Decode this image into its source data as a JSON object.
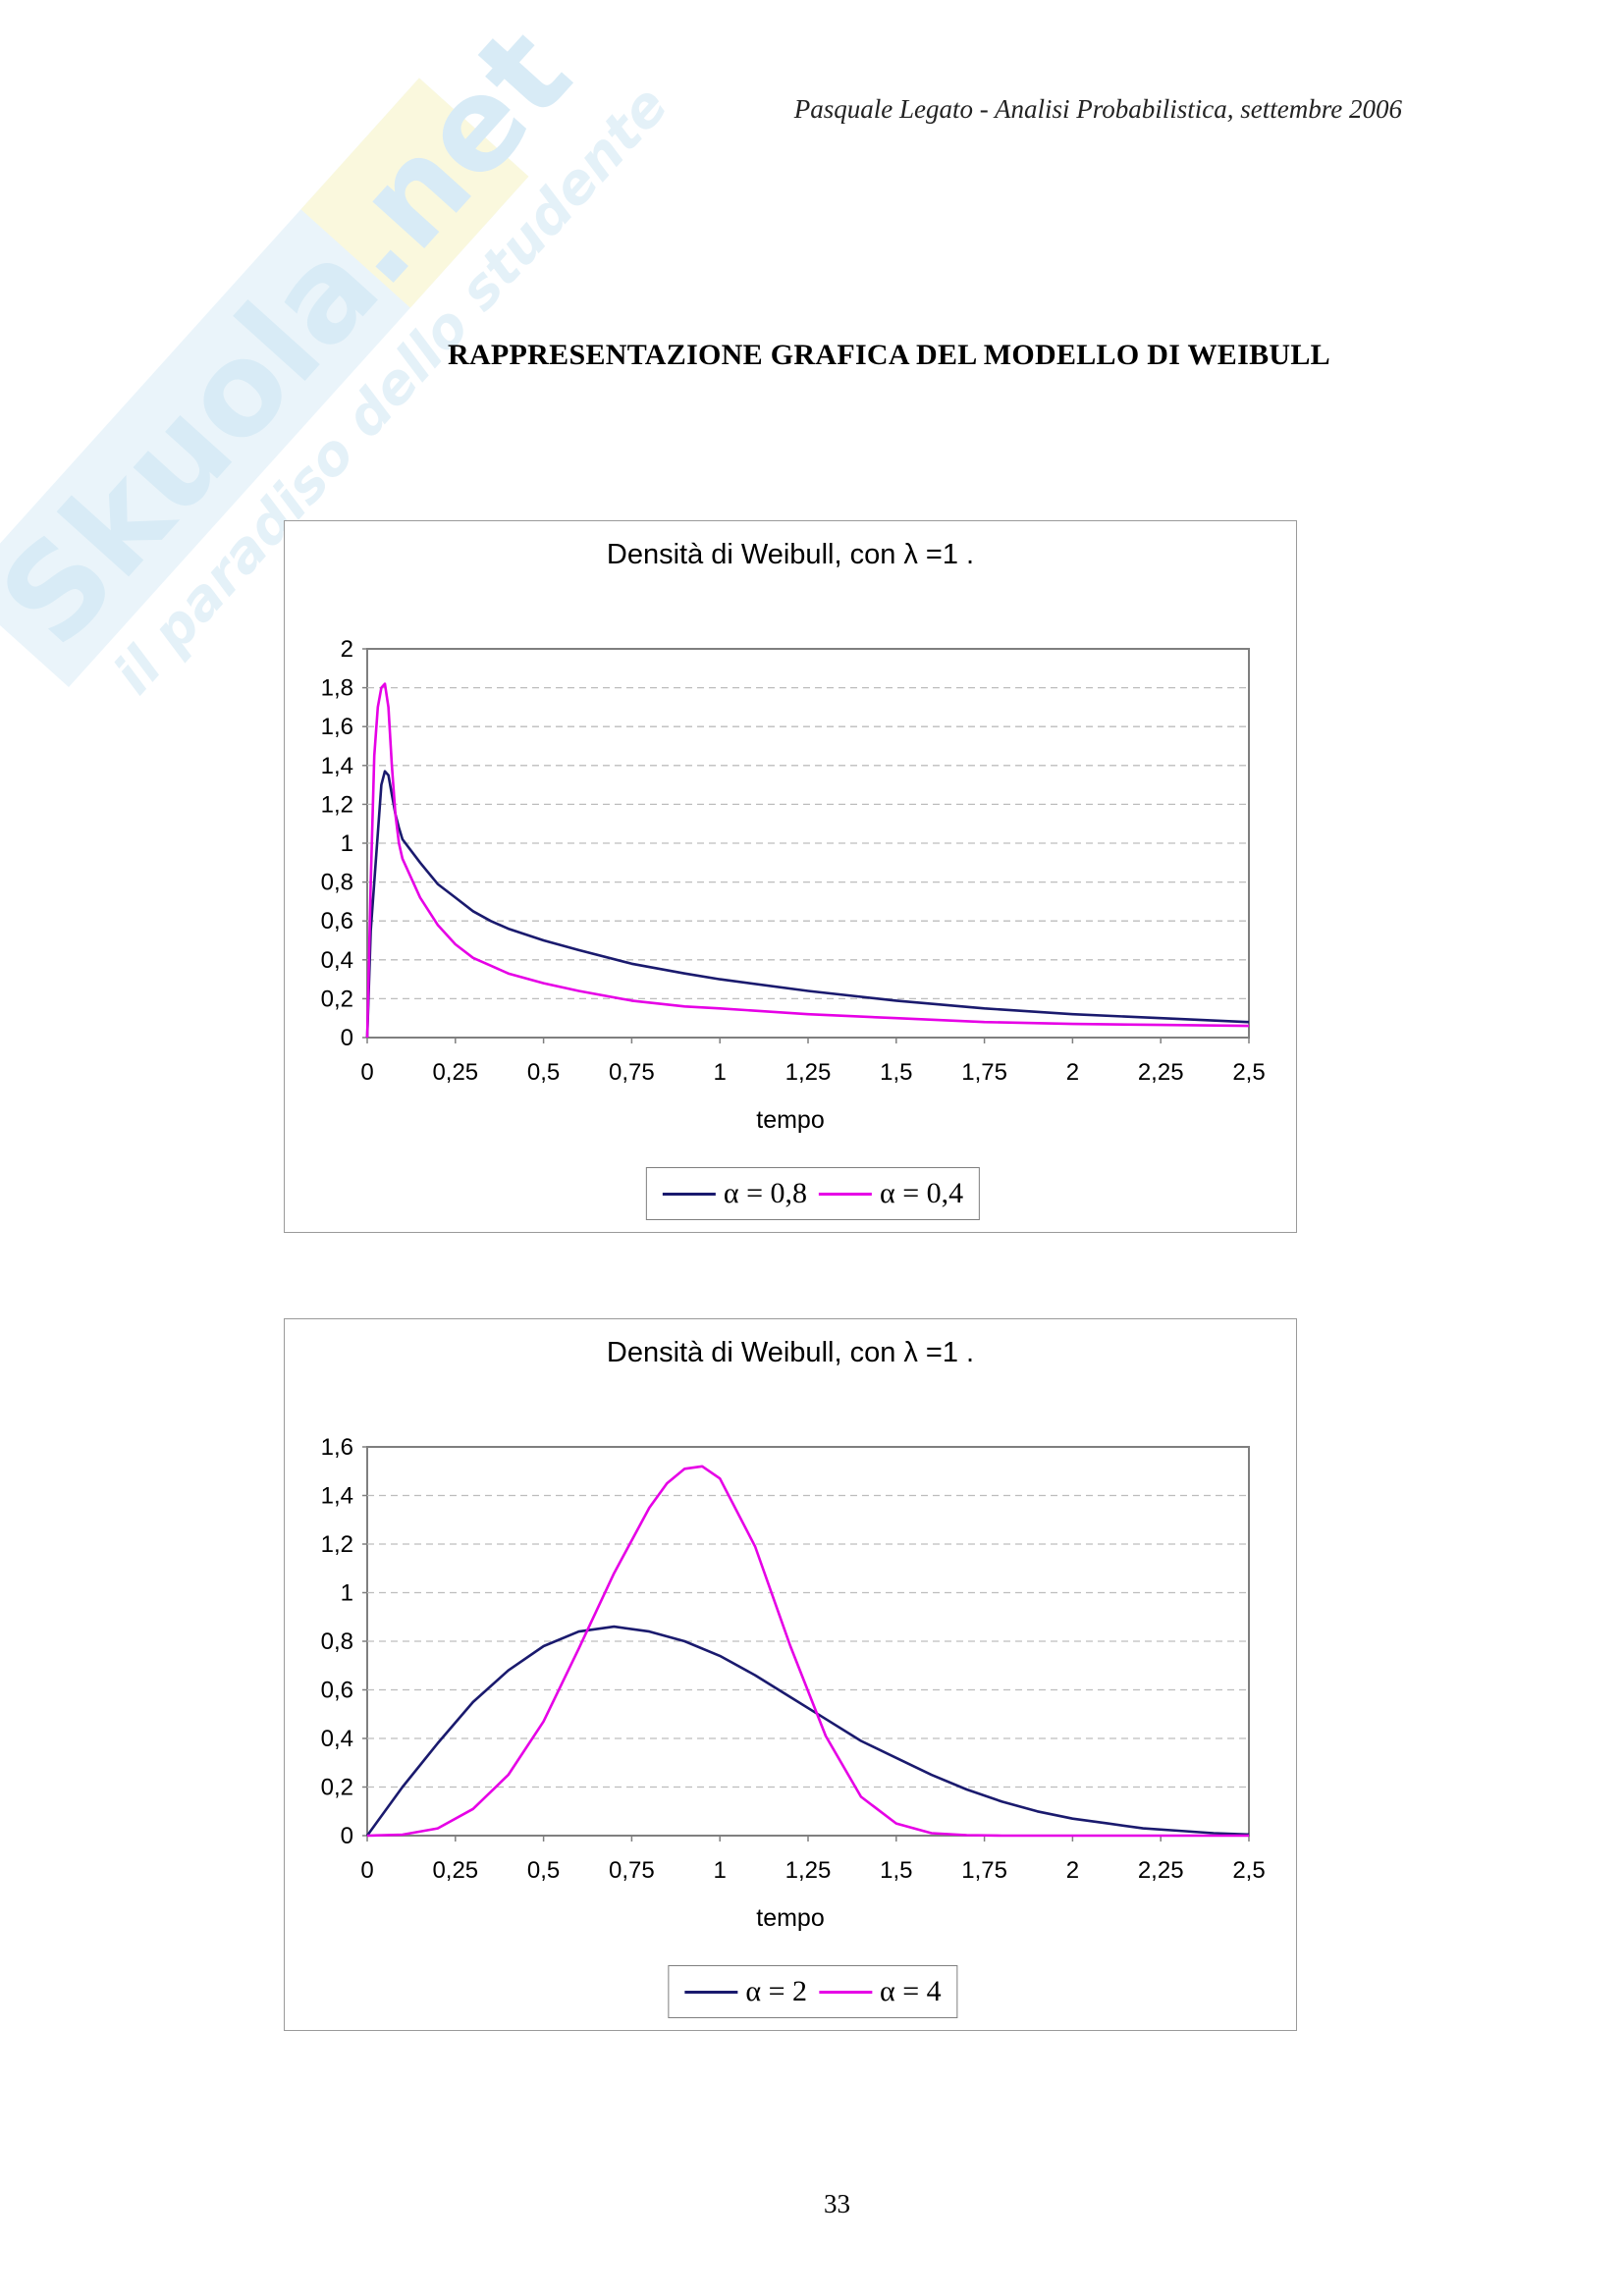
{
  "page": {
    "header": "Pasquale Legato -  Analisi Probabilistica,  settembre 2006",
    "heading": "RAPPRESENTAZIONE GRAFICA DEL MODELLO DI WEIBULL",
    "page_number": "33",
    "watermark": {
      "line1": "Skuola.net",
      "line2": "il paradiso dello studente"
    }
  },
  "colors": {
    "navy": "#1a1a6e",
    "magenta": "#e600e6",
    "grid": "#bdbdbd"
  },
  "chart_data": [
    {
      "type": "line",
      "title": "Densità di Weibull, con λ =1 .",
      "xlabel": "tempo",
      "ylabel": "",
      "xlim": [
        0,
        2.5
      ],
      "ylim": [
        0,
        2
      ],
      "x_ticks": [
        "0",
        "0,25",
        "0,5",
        "0,75",
        "1",
        "1,25",
        "1,5",
        "1,75",
        "2",
        "2,25",
        "2,5"
      ],
      "y_ticks": [
        "0",
        "0,2",
        "0,4",
        "0,6",
        "0,8",
        "1",
        "1,2",
        "1,4",
        "1,6",
        "1,8",
        "2"
      ],
      "grid": "horizontal dashed",
      "legend": "bottom",
      "series": [
        {
          "name": "α = 0,8",
          "color": "#1a1a6e",
          "x": [
            0,
            0.01,
            0.02,
            0.03,
            0.04,
            0.05,
            0.06,
            0.07,
            0.08,
            0.09,
            0.1,
            0.15,
            0.2,
            0.25,
            0.3,
            0.35,
            0.4,
            0.5,
            0.6,
            0.75,
            0.9,
            1.0,
            1.25,
            1.5,
            1.75,
            2.0,
            2.25,
            2.5
          ],
          "y": [
            0,
            0.55,
            0.8,
            1.05,
            1.3,
            1.37,
            1.35,
            1.25,
            1.15,
            1.08,
            1.02,
            0.9,
            0.79,
            0.72,
            0.65,
            0.6,
            0.56,
            0.5,
            0.45,
            0.38,
            0.33,
            0.3,
            0.24,
            0.19,
            0.15,
            0.12,
            0.1,
            0.08
          ]
        },
        {
          "name": "α = 0,4",
          "color": "#e600e6",
          "x": [
            0,
            0.01,
            0.02,
            0.03,
            0.04,
            0.05,
            0.06,
            0.07,
            0.08,
            0.09,
            0.1,
            0.15,
            0.2,
            0.25,
            0.3,
            0.35,
            0.4,
            0.5,
            0.6,
            0.75,
            0.9,
            1.0,
            1.25,
            1.5,
            1.75,
            2.0,
            2.25,
            2.5
          ],
          "y": [
            0,
            0.8,
            1.45,
            1.7,
            1.8,
            1.82,
            1.7,
            1.4,
            1.15,
            1.0,
            0.92,
            0.72,
            0.58,
            0.48,
            0.41,
            0.37,
            0.33,
            0.28,
            0.24,
            0.19,
            0.16,
            0.15,
            0.12,
            0.1,
            0.08,
            0.07,
            0.065,
            0.06
          ]
        }
      ]
    },
    {
      "type": "line",
      "title": "Densità di Weibull, con λ =1 .",
      "xlabel": "tempo",
      "ylabel": "",
      "xlim": [
        0,
        2.5
      ],
      "ylim": [
        0,
        1.6
      ],
      "x_ticks": [
        "0",
        "0,25",
        "0,5",
        "0,75",
        "1",
        "1,25",
        "1,5",
        "1,75",
        "2",
        "2,25",
        "2,5"
      ],
      "y_ticks": [
        "0",
        "0,2",
        "0,4",
        "0,6",
        "0,8",
        "1",
        "1,2",
        "1,4",
        "1,6"
      ],
      "grid": "horizontal dashed",
      "legend": "bottom",
      "series": [
        {
          "name": "α = 2",
          "color": "#1a1a6e",
          "x": [
            0,
            0.1,
            0.2,
            0.3,
            0.4,
            0.5,
            0.6,
            0.7,
            0.8,
            0.9,
            1.0,
            1.1,
            1.2,
            1.3,
            1.4,
            1.5,
            1.6,
            1.7,
            1.8,
            1.9,
            2.0,
            2.1,
            2.2,
            2.3,
            2.4,
            2.5
          ],
          "y": [
            0,
            0.2,
            0.38,
            0.55,
            0.68,
            0.78,
            0.84,
            0.86,
            0.84,
            0.8,
            0.74,
            0.66,
            0.57,
            0.48,
            0.39,
            0.32,
            0.25,
            0.19,
            0.14,
            0.1,
            0.07,
            0.05,
            0.03,
            0.02,
            0.01,
            0.005
          ]
        },
        {
          "name": "α = 4",
          "color": "#e600e6",
          "x": [
            0,
            0.1,
            0.2,
            0.3,
            0.4,
            0.5,
            0.6,
            0.7,
            0.8,
            0.85,
            0.9,
            0.95,
            1.0,
            1.1,
            1.2,
            1.3,
            1.4,
            1.5,
            1.6,
            1.7,
            1.8,
            1.9,
            2.0,
            2.5
          ],
          "y": [
            0,
            0.004,
            0.03,
            0.11,
            0.25,
            0.47,
            0.77,
            1.08,
            1.35,
            1.45,
            1.51,
            1.52,
            1.47,
            1.19,
            0.78,
            0.41,
            0.16,
            0.05,
            0.01,
            0.002,
            0,
            0,
            0,
            0
          ]
        }
      ]
    }
  ]
}
